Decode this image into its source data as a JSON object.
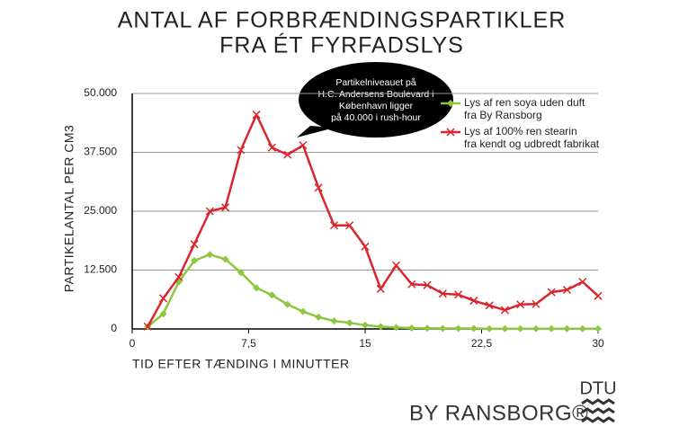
{
  "chart_data": {
    "type": "line",
    "title": [
      "ANTAL AF FORBRÆNDINGSPARTIKLER",
      "FRA ÉT FYRFADSLYS"
    ],
    "x_label": "TID EFTER TÆNDING I MINUTTER",
    "y_label": "PARTIKELANTAL PER CM3",
    "annotation": [
      "Partikelniveauet på",
      "H.C. Andersens Boulevard i",
      "København ligger",
      "på 40.000 i rush-hour"
    ],
    "x": [
      1,
      2,
      3,
      4,
      5,
      6,
      7,
      8,
      9,
      10,
      11,
      12,
      13,
      14,
      15,
      16,
      17,
      18,
      19,
      20,
      21,
      22,
      23,
      24,
      25,
      26,
      27,
      28,
      29,
      30
    ],
    "series": [
      {
        "name": [
          "Lys af ren soya uden duft",
          "fra By Ransborg"
        ],
        "color": "#8dc63f",
        "marker": "diamond",
        "values": [
          500,
          3200,
          10000,
          14500,
          15800,
          14800,
          12000,
          8700,
          7200,
          5200,
          3700,
          2500,
          1700,
          1300,
          800,
          500,
          300,
          200,
          150,
          100,
          100,
          100,
          50,
          50,
          50,
          50,
          50,
          50,
          50,
          50
        ]
      },
      {
        "name": [
          "Lys af 100% ren stearin",
          "fra kendt og udbredt fabrikat"
        ],
        "color": "#d7262c",
        "marker": "x",
        "values": [
          500,
          6500,
          11000,
          18000,
          25000,
          25800,
          38000,
          45500,
          38500,
          37000,
          39000,
          30000,
          22000,
          22000,
          17500,
          8500,
          13500,
          9500,
          9300,
          7500,
          7300,
          6000,
          5000,
          4000,
          5200,
          5300,
          7800,
          8300,
          10000,
          7000
        ]
      }
    ],
    "xlim": [
      0,
      30
    ],
    "xticks": [
      0,
      {
        "value": 7.5,
        "label": "7,5"
      },
      15,
      {
        "value": 22.5,
        "label": "22,5"
      },
      30
    ],
    "ylim": [
      0,
      50000
    ],
    "yticks": [
      0,
      {
        "value": 12500,
        "label": "12.500"
      },
      {
        "value": 25000,
        "label": "25.000"
      },
      {
        "value": 37500,
        "label": "37.500"
      },
      {
        "value": 50000,
        "label": "50.000"
      }
    ],
    "grid": true
  },
  "branding": {
    "brand": "BY RANSBORG®",
    "logo": "DTU"
  }
}
